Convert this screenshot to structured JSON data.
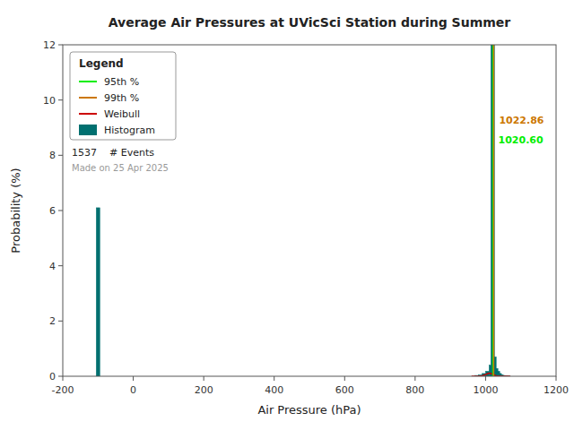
{
  "chart_data": {
    "type": "histogram",
    "title": "Average Air Pressures at UVicSci Station during Summer",
    "x_label": "Air Pressure (hPa)",
    "y_label": "Probability (%)",
    "xlim": [
      -200,
      1200
    ],
    "ylim": [
      0,
      12
    ],
    "xticks": [
      -200,
      0,
      200,
      400,
      600,
      800,
      1000,
      1200
    ],
    "yticks": [
      0,
      2,
      4,
      6,
      8,
      10,
      12
    ],
    "grid": false,
    "legend": "upper left",
    "legend_title": "Legend",
    "series": [
      {
        "name": "95th %",
        "type": "vline",
        "color": "#00ee00",
        "x": [
          1020.6
        ],
        "x_labels": [
          "1020.60"
        ]
      },
      {
        "name": "99th %",
        "type": "vline",
        "color": "#cc7700",
        "x": [
          1022.86
        ],
        "x_labels": [
          "1022.86"
        ]
      },
      {
        "name": "Weibull",
        "type": "line",
        "color": "#cc0000",
        "x": [
          960,
          970,
          980,
          990,
          1000,
          1005,
          1010,
          1015,
          1020,
          1025,
          1030,
          1035,
          1040,
          1050,
          1060,
          1070
        ],
        "values": [
          0.0,
          0.001,
          0.005,
          0.02,
          0.06,
          0.09,
          0.11,
          0.1,
          0.07,
          0.04,
          0.02,
          0.01,
          0.005,
          0.001,
          0.0,
          0.0
        ]
      },
      {
        "name": "Histogram",
        "type": "bar",
        "color": "#007070",
        "x": [
          -100,
          975,
          985,
          995,
          1005,
          1015,
          1020,
          1025,
          1030,
          1035,
          1040,
          1045,
          1050,
          1055,
          1060,
          1065
        ],
        "values": [
          6.1,
          0.03,
          0.05,
          0.1,
          0.18,
          0.4,
          12.0,
          0.7,
          0.28,
          0.18,
          0.1,
          0.05,
          0.03,
          0.015,
          0.01,
          0.005
        ],
        "width": 10
      }
    ],
    "annotations": [
      "1537    # Events",
      "Made on 25 Apr 2025"
    ]
  }
}
